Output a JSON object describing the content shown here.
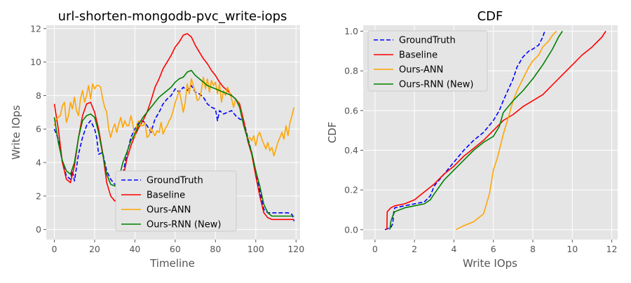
{
  "chart_data": [
    {
      "type": "line",
      "title": "url-shorten-mongodb-pvc_write-iops",
      "xlabel": "Timeline",
      "ylabel": "Write IOps",
      "xlim": [
        -4,
        122
      ],
      "ylim": [
        -0.6,
        12.2
      ],
      "xticks": [
        0,
        20,
        40,
        60,
        80,
        100,
        120
      ],
      "yticks": [
        0,
        2,
        4,
        6,
        8,
        10,
        12
      ],
      "grid": true,
      "legend": "lower-center",
      "series": [
        {
          "name": "GroundTruth",
          "color": "#0000ff",
          "dash": "dashed",
          "x": [
            0,
            2,
            4,
            6,
            8,
            9,
            10,
            12,
            14,
            16,
            18,
            20,
            21,
            22,
            24,
            26,
            28,
            30,
            32,
            34,
            36,
            38,
            40,
            42,
            44,
            46,
            48,
            50,
            52,
            54,
            56,
            58,
            60,
            62,
            64,
            66,
            68,
            70,
            72,
            74,
            76,
            78,
            80,
            81,
            82,
            84,
            86,
            88,
            90,
            92,
            94,
            96,
            98,
            100,
            102,
            104,
            106,
            108,
            110,
            112,
            114,
            116,
            118,
            119
          ],
          "y": [
            6.0,
            5.4,
            4.0,
            3.2,
            3.0,
            3.5,
            2.9,
            4.5,
            5.5,
            6.2,
            6.5,
            6.0,
            5.5,
            4.5,
            4.6,
            3.5,
            3.0,
            2.7,
            2.6,
            3.3,
            4.5,
            5.5,
            6.0,
            6.4,
            6.5,
            6.2,
            5.8,
            6.6,
            7.0,
            7.5,
            7.8,
            8.0,
            8.4,
            8.2,
            8.5,
            8.3,
            8.6,
            8.2,
            8.1,
            7.9,
            7.5,
            7.3,
            7.2,
            6.5,
            7.1,
            6.9,
            7.0,
            7.1,
            6.8,
            6.6,
            6.5,
            5.5,
            4.6,
            3.5,
            2.3,
            1.2,
            1.0,
            1.0,
            1.0,
            1.0,
            1.0,
            1.0,
            0.9,
            0.5
          ]
        },
        {
          "name": "Baseline",
          "color": "#ff0000",
          "dash": "solid",
          "x": [
            0,
            2,
            4,
            6,
            8,
            10,
            12,
            14,
            16,
            18,
            20,
            22,
            24,
            26,
            28,
            30,
            32,
            34,
            36,
            38,
            40,
            42,
            44,
            46,
            48,
            50,
            52,
            54,
            56,
            58,
            60,
            62,
            64,
            66,
            68,
            70,
            72,
            74,
            76,
            78,
            80,
            82,
            84,
            86,
            88,
            90,
            92,
            94,
            96,
            98,
            100,
            102,
            104,
            106,
            108,
            110,
            112,
            114,
            116,
            118,
            119
          ],
          "y": [
            7.5,
            6.0,
            4.0,
            3.0,
            2.8,
            3.8,
            5.5,
            6.8,
            7.5,
            7.6,
            7.0,
            6.0,
            4.6,
            2.8,
            2.0,
            1.7,
            2.0,
            3.0,
            4.2,
            5.0,
            5.6,
            6.1,
            6.5,
            7.0,
            7.7,
            8.5,
            9.0,
            9.6,
            10.0,
            10.4,
            10.9,
            11.2,
            11.6,
            11.7,
            11.5,
            11.0,
            10.6,
            10.2,
            9.9,
            9.5,
            9.2,
            8.8,
            8.5,
            8.3,
            8.0,
            7.8,
            7.5,
            6.5,
            5.3,
            4.5,
            3.2,
            2.0,
            1.0,
            0.7,
            0.6,
            0.6,
            0.6,
            0.6,
            0.6,
            0.6,
            0.6
          ]
        },
        {
          "name": "Ours-ANN",
          "color": "#ffa500",
          "dash": "solid",
          "x": [
            0,
            1,
            2,
            3,
            4,
            5,
            6,
            7,
            8,
            9,
            10,
            11,
            12,
            13,
            14,
            15,
            16,
            17,
            18,
            19,
            20,
            21,
            22,
            23,
            24,
            25,
            26,
            27,
            28,
            29,
            30,
            31,
            32,
            33,
            34,
            35,
            36,
            37,
            38,
            39,
            40,
            41,
            42,
            43,
            44,
            45,
            46,
            47,
            48,
            49,
            50,
            51,
            52,
            53,
            54,
            55,
            56,
            57,
            58,
            59,
            60,
            61,
            62,
            63,
            64,
            65,
            66,
            67,
            68,
            69,
            70,
            71,
            72,
            73,
            74,
            75,
            76,
            77,
            78,
            79,
            80,
            81,
            82,
            83,
            84,
            85,
            86,
            87,
            88,
            89,
            90,
            91,
            92,
            93,
            94,
            95,
            96,
            97,
            98,
            99,
            100,
            101,
            102,
            103,
            104,
            105,
            106,
            107,
            108,
            109,
            110,
            111,
            112,
            113,
            114,
            115,
            116,
            117,
            118,
            119
          ],
          "y": [
            6.2,
            6.6,
            6.7,
            6.8,
            7.4,
            7.6,
            6.4,
            6.8,
            7.6,
            7.2,
            7.9,
            7.1,
            6.8,
            7.8,
            8.3,
            7.6,
            8.0,
            8.6,
            7.8,
            8.7,
            8.4,
            8.6,
            8.6,
            8.5,
            7.8,
            7.3,
            7.0,
            6.0,
            5.5,
            6.0,
            6.3,
            5.8,
            6.3,
            6.7,
            6.1,
            6.5,
            6.2,
            6.2,
            6.8,
            6.3,
            5.5,
            6.3,
            6.5,
            6.2,
            6.2,
            6.4,
            5.5,
            5.6,
            6.1,
            5.8,
            5.6,
            5.9,
            5.8,
            6.4,
            5.7,
            6.0,
            6.2,
            6.5,
            6.7,
            7.1,
            7.6,
            7.9,
            8.3,
            7.7,
            7.0,
            7.6,
            8.7,
            8.1,
            9.0,
            8.6,
            8.2,
            7.7,
            7.8,
            8.3,
            9.1,
            8.4,
            9.0,
            8.2,
            8.9,
            8.6,
            8.8,
            8.1,
            8.7,
            7.6,
            8.3,
            8.0,
            8.5,
            8.2,
            7.8,
            7.3,
            7.8,
            7.6,
            7.3,
            6.8,
            6.2,
            5.8,
            5.4,
            5.5,
            5.3,
            5.6,
            5.0,
            5.6,
            5.8,
            5.4,
            5.1,
            4.8,
            5.2,
            4.7,
            4.9,
            4.4,
            4.8,
            5.2,
            5.5,
            5.8,
            5.4,
            6.2,
            5.6,
            6.4,
            6.8,
            7.3
          ]
        },
        {
          "name": "Ours-RNN (New)",
          "color": "#008000",
          "dash": "solid",
          "x": [
            0,
            2,
            4,
            6,
            8,
            10,
            12,
            14,
            16,
            18,
            20,
            22,
            24,
            26,
            28,
            30,
            32,
            34,
            36,
            38,
            40,
            42,
            44,
            46,
            48,
            50,
            52,
            54,
            56,
            58,
            60,
            62,
            64,
            66,
            68,
            70,
            72,
            74,
            76,
            78,
            80,
            82,
            84,
            86,
            88,
            90,
            92,
            94,
            96,
            98,
            100,
            102,
            104,
            106,
            108,
            110,
            112,
            114,
            116,
            118,
            119
          ],
          "y": [
            6.7,
            5.2,
            4.1,
            3.5,
            3.3,
            4.0,
            5.5,
            6.5,
            6.8,
            6.9,
            6.7,
            5.8,
            4.5,
            3.3,
            2.7,
            2.6,
            3.0,
            4.0,
            4.6,
            5.3,
            5.7,
            6.3,
            6.7,
            7.0,
            7.3,
            7.6,
            7.9,
            8.1,
            8.3,
            8.5,
            8.8,
            9.0,
            9.1,
            9.4,
            9.5,
            9.2,
            9.0,
            8.8,
            8.6,
            8.5,
            8.4,
            8.3,
            8.2,
            8.1,
            8.0,
            7.8,
            7.3,
            6.2,
            5.4,
            4.6,
            3.5,
            2.6,
            1.5,
            1.0,
            0.8,
            0.8,
            0.8,
            0.8,
            0.8,
            0.8,
            0.8
          ]
        }
      ]
    },
    {
      "type": "line",
      "title": "CDF",
      "xlabel": "Write IOps",
      "ylabel": "CDF",
      "xlim": [
        -0.6,
        12.3
      ],
      "ylim": [
        -0.05,
        1.03
      ],
      "xticks": [
        0,
        2,
        4,
        6,
        8,
        10,
        12
      ],
      "yticks": [
        0.0,
        0.2,
        0.4,
        0.6,
        0.8,
        1.0
      ],
      "grid": true,
      "legend": "upper-left",
      "series": [
        {
          "name": "GroundTruth",
          "color": "#0000ff",
          "dash": "dashed",
          "x": [
            0.5,
            0.8,
            0.9,
            0.95,
            1.0,
            1.5,
            2.0,
            2.5,
            2.8,
            3.0,
            3.5,
            4.0,
            4.5,
            5.0,
            5.5,
            6.0,
            6.3,
            6.5,
            7.0,
            7.2,
            7.5,
            7.8,
            8.0,
            8.3,
            8.5,
            8.6
          ],
          "y": [
            0.0,
            0.01,
            0.03,
            0.09,
            0.11,
            0.12,
            0.13,
            0.14,
            0.17,
            0.22,
            0.28,
            0.34,
            0.4,
            0.45,
            0.49,
            0.55,
            0.6,
            0.65,
            0.76,
            0.82,
            0.87,
            0.9,
            0.91,
            0.93,
            0.97,
            1.0
          ]
        },
        {
          "name": "Baseline",
          "color": "#ff0000",
          "dash": "solid",
          "x": [
            0.6,
            0.62,
            0.8,
            1.0,
            1.5,
            2.0,
            2.5,
            3.0,
            3.5,
            4.0,
            4.5,
            5.0,
            5.5,
            6.0,
            6.5,
            7.0,
            7.5,
            8.0,
            8.5,
            9.0,
            9.5,
            10.0,
            10.5,
            11.0,
            11.5,
            11.7
          ],
          "y": [
            0.0,
            0.09,
            0.11,
            0.12,
            0.13,
            0.15,
            0.19,
            0.23,
            0.28,
            0.32,
            0.37,
            0.41,
            0.45,
            0.5,
            0.55,
            0.58,
            0.62,
            0.65,
            0.68,
            0.73,
            0.78,
            0.83,
            0.88,
            0.92,
            0.97,
            1.0
          ]
        },
        {
          "name": "Ours-ANN",
          "color": "#ffa500",
          "dash": "solid",
          "x": [
            4.1,
            4.5,
            5.0,
            5.5,
            5.8,
            6.0,
            6.2,
            6.5,
            6.8,
            7.0,
            7.2,
            7.5,
            7.8,
            8.0,
            8.3,
            8.5,
            8.8,
            9.0,
            9.2
          ],
          "y": [
            0.0,
            0.02,
            0.04,
            0.08,
            0.18,
            0.3,
            0.36,
            0.48,
            0.58,
            0.65,
            0.7,
            0.76,
            0.82,
            0.85,
            0.88,
            0.92,
            0.95,
            0.98,
            1.0
          ]
        },
        {
          "name": "Ours-RNN (New)",
          "color": "#008000",
          "dash": "solid",
          "x": [
            0.75,
            0.8,
            0.9,
            1.0,
            1.5,
            2.0,
            2.5,
            2.8,
            3.0,
            3.5,
            4.0,
            4.5,
            5.0,
            5.5,
            6.0,
            6.3,
            6.5,
            7.0,
            7.5,
            8.0,
            8.5,
            9.0,
            9.3,
            9.5
          ],
          "y": [
            0.0,
            0.04,
            0.07,
            0.09,
            0.11,
            0.12,
            0.13,
            0.15,
            0.18,
            0.25,
            0.3,
            0.35,
            0.4,
            0.44,
            0.47,
            0.52,
            0.59,
            0.65,
            0.7,
            0.76,
            0.83,
            0.91,
            0.97,
            1.0
          ]
        }
      ]
    }
  ]
}
